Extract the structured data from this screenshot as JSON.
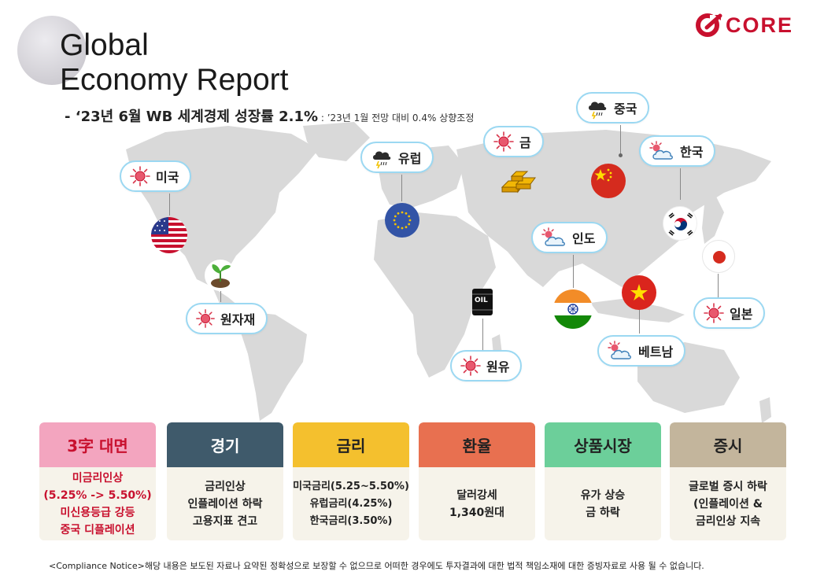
{
  "header": {
    "title_line1": "Global",
    "title_line2": "Economy Report",
    "subtitle": "- ‘23년 6월 WB 세계경제 성장률 2.1%",
    "subtitle_note": " : ’23년 1월 전망 대비 0.4% 상향조정"
  },
  "logo": {
    "text": "CORE",
    "brand_color": "#c8102e"
  },
  "map_labels": [
    {
      "key": "usa",
      "label": "미국",
      "weather": "sunny"
    },
    {
      "key": "raw",
      "label": "원자재",
      "weather": "sunny"
    },
    {
      "key": "eu",
      "label": "유럽",
      "weather": "thunderstorm"
    },
    {
      "key": "gold",
      "label": "금",
      "weather": "sunny"
    },
    {
      "key": "china",
      "label": "중국",
      "weather": "thunderstorm"
    },
    {
      "key": "korea",
      "label": "한국",
      "weather": "partly-cloudy"
    },
    {
      "key": "india",
      "label": "인도",
      "weather": "partly-cloudy"
    },
    {
      "key": "oil",
      "label": "원유",
      "weather": "sunny"
    },
    {
      "key": "vietnam",
      "label": "베트남",
      "weather": "partly-cloudy"
    },
    {
      "key": "japan",
      "label": "일본",
      "weather": "sunny"
    }
  ],
  "oil_barrel_text": "OIL",
  "panels": [
    {
      "title": "3字 대면",
      "lines": [
        "미금리인상",
        "(5.25% -> 5.50%)",
        "미신용등급 강등",
        "중국 디플레이션"
      ],
      "head_color": "#f3a5bf",
      "head_text_color": "#c8102e",
      "body_red": true
    },
    {
      "title": "경기",
      "lines": [
        "금리인상",
        "인플레이션 하락",
        "고용지표 견고"
      ],
      "head_color": "#3f5a6b",
      "head_text_color": "#ffffff",
      "body_red": false
    },
    {
      "title": "금리",
      "lines": [
        "미국금리(5.25~5.50%)",
        "유럽금리(4.25%)",
        "한국금리(3.50%)"
      ],
      "head_color": "#f4c02e",
      "head_text_color": "#222222",
      "body_red": false
    },
    {
      "title": "환율",
      "lines": [
        "달러강세",
        "1,340원대"
      ],
      "head_color": "#e87050",
      "head_text_color": "#222222",
      "body_red": false
    },
    {
      "title": "상품시장",
      "lines": [
        "유가 상승",
        "금 하락"
      ],
      "head_color": "#6ccf9a",
      "head_text_color": "#222222",
      "body_red": false
    },
    {
      "title": "증시",
      "lines": [
        "글로벌 증시 하락",
        "(인플레이션 &",
        "금리인상 지속"
      ],
      "head_color": "#c3b59c",
      "head_text_color": "#222222",
      "body_red": false
    }
  ],
  "footer": "<Compliance Notice>해당 내용은 보도된 자료나 요약된 정확성으로 보장할 수 없으므로 어떠한 경우에도 투자결과에 대한 법적 책임소재에 대한 증빙자료로 사용 될 수 없습니다."
}
